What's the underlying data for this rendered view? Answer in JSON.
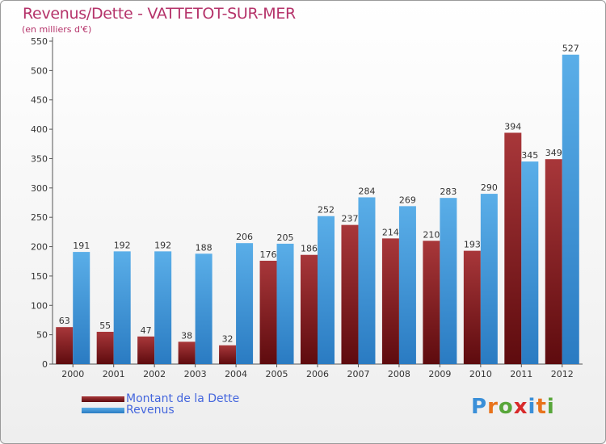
{
  "title": "Revenus/Dette - VATTETOT-SUR-MER",
  "subtitle": "(en milliers d'€)",
  "colors": {
    "title": "#b5336a",
    "dette_dark": "#5e0b0e",
    "dette_light": "#a8373a",
    "revenus_dark": "#2a7bc2",
    "revenus_light": "#5aaee8",
    "legend_text": "#4466dd"
  },
  "legend": [
    {
      "label": "Montant de la Dette",
      "color_key": "dette"
    },
    {
      "label": "Revenus",
      "color_key": "revenus"
    }
  ],
  "logo": {
    "text": "Proxiti",
    "letter_colors": [
      "#3a8fd8",
      "#e8731c",
      "#58a63a",
      "#d82a2a",
      "#3a8fd8",
      "#e8731c",
      "#58a63a"
    ]
  },
  "chart_data": {
    "type": "bar",
    "categories": [
      "2000",
      "2001",
      "2002",
      "2003",
      "2004",
      "2005",
      "2006",
      "2007",
      "2008",
      "2009",
      "2010",
      "2011",
      "2012"
    ],
    "series": [
      {
        "name": "Montant de la Dette",
        "values": [
          63,
          55,
          47,
          38,
          32,
          176,
          186,
          237,
          214,
          210,
          193,
          394,
          349
        ]
      },
      {
        "name": "Revenus",
        "values": [
          191,
          192,
          192,
          188,
          206,
          205,
          252,
          284,
          269,
          283,
          290,
          345,
          527
        ]
      }
    ],
    "ylim": [
      0,
      550
    ],
    "yticks": [
      0,
      50,
      100,
      150,
      200,
      250,
      300,
      350,
      400,
      450,
      500,
      550
    ],
    "grid": false,
    "legend_position": "bottom-left"
  }
}
